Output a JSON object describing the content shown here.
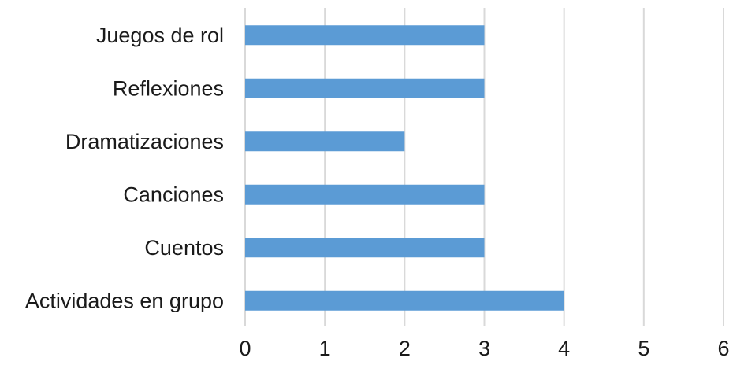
{
  "chart_data": {
    "type": "bar",
    "orientation": "horizontal",
    "categories": [
      "Juegos de rol",
      "Reflexiones",
      "Dramatizaciones",
      "Canciones",
      "Cuentos",
      "Actividades en grupo"
    ],
    "values": [
      3,
      3,
      2,
      3,
      3,
      4
    ],
    "xlim": [
      0,
      6
    ],
    "x_ticks": [
      "0",
      "1",
      "2",
      "3",
      "4",
      "5",
      "6"
    ],
    "bar_color": "#5b9bd5",
    "grid": true,
    "legend": "none",
    "title": "",
    "xlabel": "",
    "ylabel": ""
  }
}
